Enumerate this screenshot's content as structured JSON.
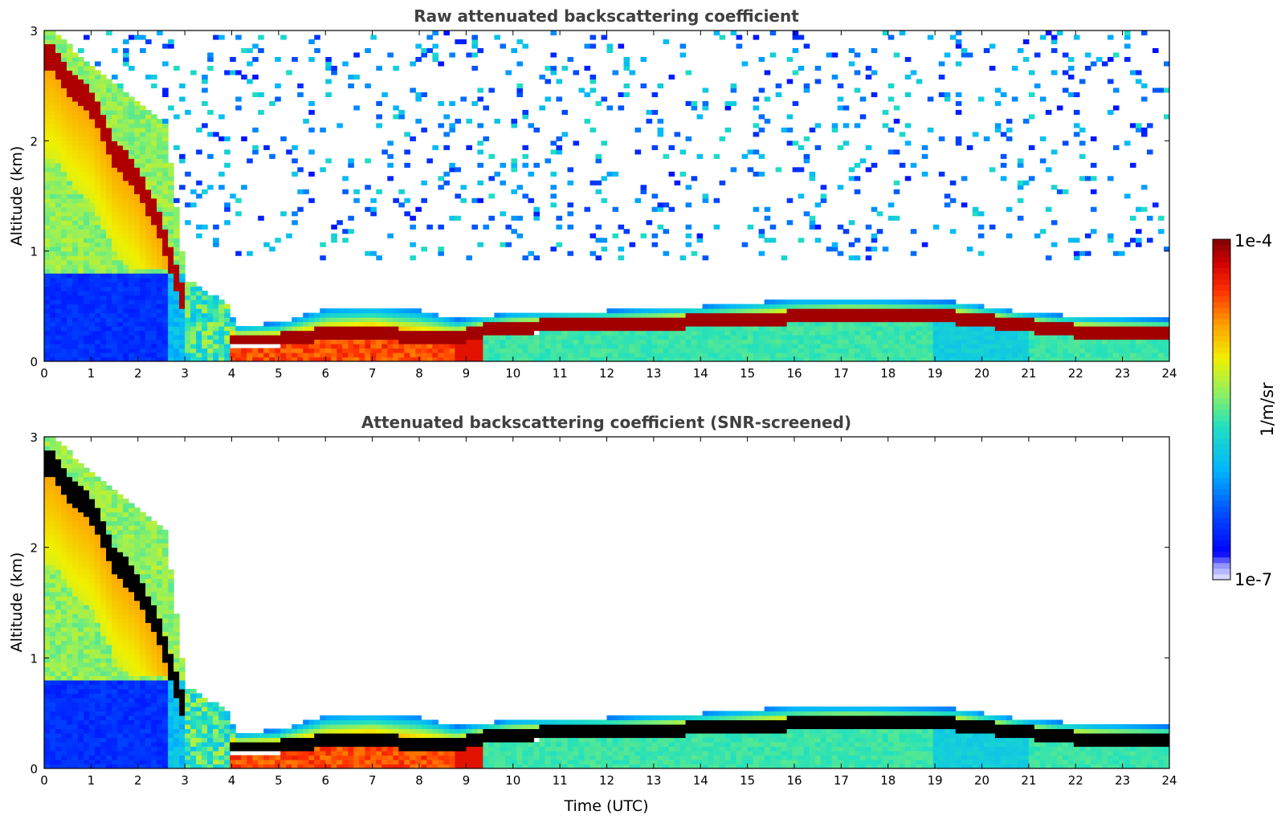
{
  "chart_data": [
    {
      "type": "heatmap",
      "title": "Raw attenuated backscattering coefficient",
      "xlabel": "",
      "ylabel": "Altitude (km)",
      "xlim": [
        0,
        24
      ],
      "ylim": [
        0,
        3
      ],
      "x_ticks": [
        "0",
        "1",
        "2",
        "3",
        "4",
        "5",
        "6",
        "7",
        "8",
        "9",
        "10",
        "11",
        "12",
        "13",
        "14",
        "15",
        "16",
        "17",
        "18",
        "19",
        "20",
        "21",
        "22",
        "23",
        "24"
      ],
      "y_ticks": [
        "0",
        "1",
        "2",
        "3"
      ],
      "screened": false,
      "features": {
        "boundary_layer_top_km": [
          {
            "t": 0,
            "z": 0.75
          },
          {
            "t": 1,
            "z": 0.8
          },
          {
            "t": 2,
            "z": 0.85
          },
          {
            "t": 2.8,
            "z": 0.8
          },
          {
            "t": 3.8,
            "z": 0.6
          },
          {
            "t": 4.1,
            "z": 0.32
          },
          {
            "t": 5,
            "z": 0.35
          },
          {
            "t": 6,
            "z": 0.48
          },
          {
            "t": 7,
            "z": 0.5
          },
          {
            "t": 8,
            "z": 0.47
          },
          {
            "t": 8.8,
            "z": 0.38
          },
          {
            "t": 10,
            "z": 0.44
          },
          {
            "t": 12,
            "z": 0.46
          },
          {
            "t": 14,
            "z": 0.5
          },
          {
            "t": 16,
            "z": 0.56
          },
          {
            "t": 17.5,
            "z": 0.56
          },
          {
            "t": 19.5,
            "z": 0.54
          },
          {
            "t": 21,
            "z": 0.44
          },
          {
            "t": 22.5,
            "z": 0.4
          },
          {
            "t": 24,
            "z": 0.38
          }
        ],
        "cloud_layer_km": [
          {
            "t": 4.0,
            "z": 0.2
          },
          {
            "t": 5,
            "z": 0.2
          },
          {
            "t": 6,
            "z": 0.25
          },
          {
            "t": 7,
            "z": 0.27
          },
          {
            "t": 8,
            "z": 0.22
          },
          {
            "t": 8.8,
            "z": 0.22
          },
          {
            "t": 9.5,
            "z": 0.3
          },
          {
            "t": 11,
            "z": 0.33
          },
          {
            "t": 13,
            "z": 0.35
          },
          {
            "t": 15,
            "z": 0.38
          },
          {
            "t": 17,
            "z": 0.43
          },
          {
            "t": 19,
            "z": 0.42
          },
          {
            "t": 20.5,
            "z": 0.35
          },
          {
            "t": 22,
            "z": 0.28
          },
          {
            "t": 24,
            "z": 0.27
          }
        ],
        "descending_layer_km": [
          {
            "t": 0.2,
            "z": 2.75
          },
          {
            "t": 0.6,
            "z": 2.5
          },
          {
            "t": 1,
            "z": 2.35
          },
          {
            "t": 1.5,
            "z": 1.9
          },
          {
            "t": 2,
            "z": 1.65
          },
          {
            "t": 2.5,
            "z": 1.2
          },
          {
            "t": 3,
            "z": 0.5
          }
        ]
      }
    },
    {
      "type": "heatmap",
      "title": "Attenuated backscattering coefficient (SNR-screened)",
      "xlabel": "Time (UTC)",
      "ylabel": "Altitude (km)",
      "xlim": [
        0,
        24
      ],
      "ylim": [
        0,
        3
      ],
      "x_ticks": [
        "0",
        "1",
        "2",
        "3",
        "4",
        "5",
        "6",
        "7",
        "8",
        "9",
        "10",
        "11",
        "12",
        "13",
        "14",
        "15",
        "16",
        "17",
        "18",
        "19",
        "20",
        "21",
        "22",
        "23",
        "24"
      ],
      "y_ticks": [
        "0",
        "1",
        "2",
        "3"
      ],
      "screened": true
    }
  ],
  "colorbar": {
    "label": "1/m/sr",
    "max_label": "1e-4",
    "min_label": "1e-7",
    "scale": "log",
    "colormap": "jet",
    "range": [
      1e-07,
      0.0001
    ]
  },
  "colors": {
    "title": "#404040",
    "saturated": "#000000"
  }
}
